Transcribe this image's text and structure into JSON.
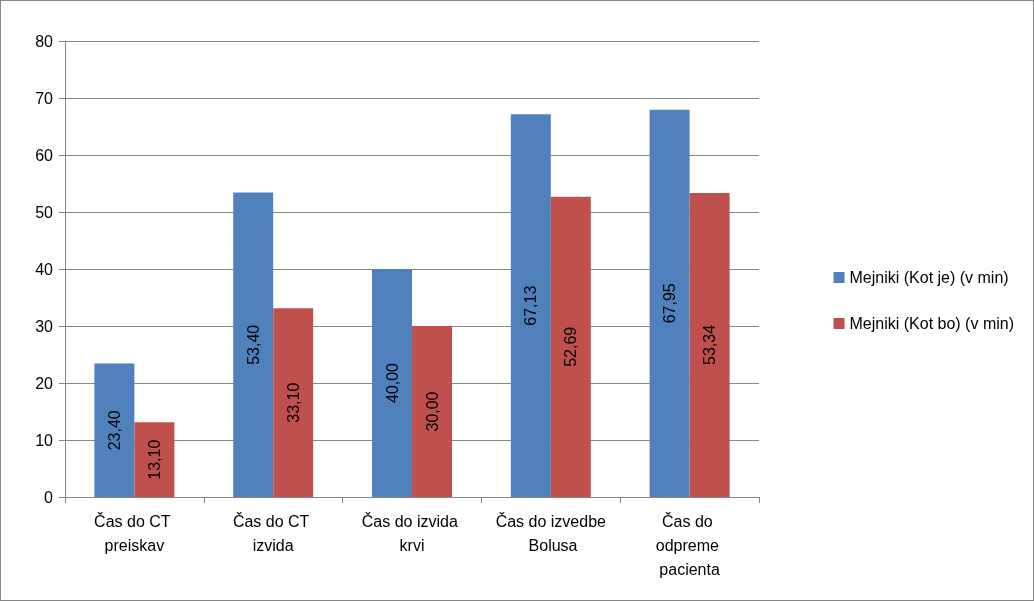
{
  "chart_data": {
    "type": "bar",
    "categories": [
      "Čas do CT preiskav",
      "Čas do CT izvida",
      "Čas do izvida krvi",
      "Čas do izvedbe Bolusa",
      "Čas do odpreme pacienta"
    ],
    "series": [
      {
        "name": "Mejniki (Kot je) (v min)",
        "color": "#4f81bd",
        "values": [
          23.4,
          53.4,
          40,
          67.13,
          67.95
        ],
        "value_labels": [
          "23,40",
          "53,40",
          "40,00",
          "67,13",
          "67,95"
        ]
      },
      {
        "name": "Mejniki (Kot bo) (v min)",
        "color": "#c0504d",
        "values": [
          13.1,
          33.1,
          30,
          52.69,
          53.34
        ],
        "value_labels": [
          "13,10",
          "33,10",
          "30,00",
          "52,69",
          "53,34"
        ]
      }
    ],
    "ylim": [
      0,
      80
    ],
    "yticks": [
      0,
      10,
      20,
      30,
      40,
      50,
      60,
      70,
      80
    ],
    "grid": "y",
    "legend": "right"
  }
}
